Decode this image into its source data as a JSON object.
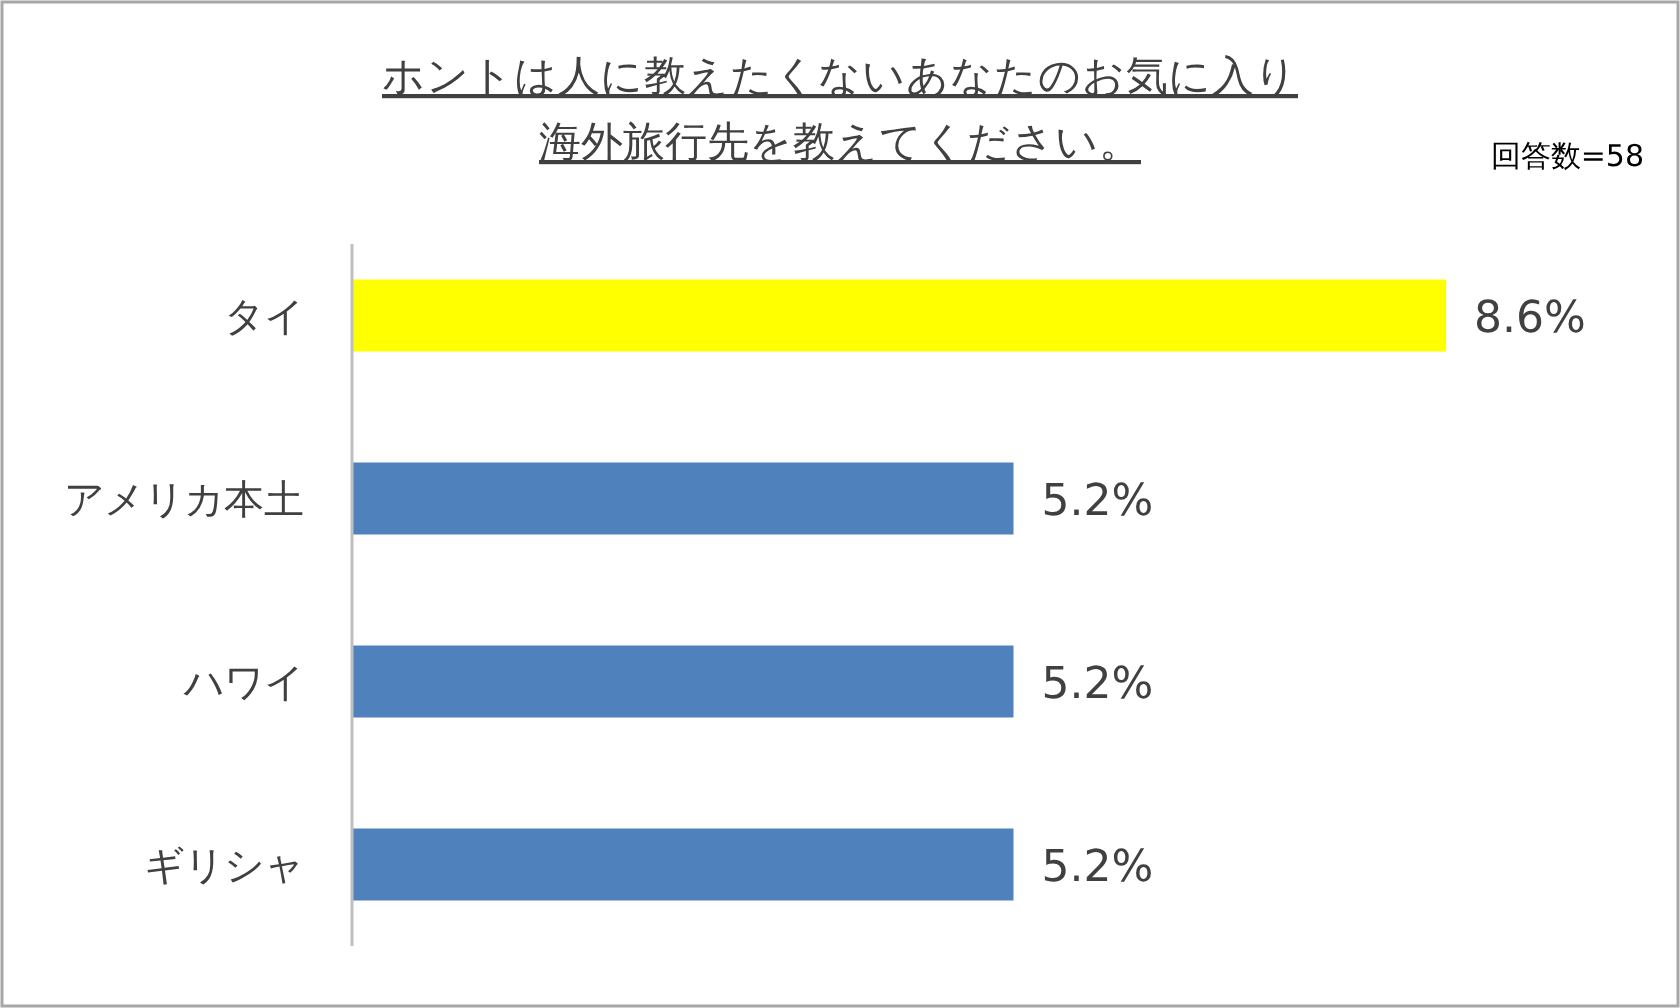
{
  "chart_data": {
    "type": "bar",
    "orientation": "horizontal",
    "title": "ホントは人に教えたくないあなたのお気に入り",
    "subtitle": "海外旅行先を教えてください。",
    "annotations": [
      "回答数=58"
    ],
    "categories": [
      "タイ",
      "アメリカ本土",
      "ハワイ",
      "ギリシャ"
    ],
    "values": [
      8.6,
      5.2,
      5.2,
      5.2
    ],
    "colors": [
      "#ffff00",
      "#4f81bd",
      "#4f81bd",
      "#4f81bd"
    ],
    "value_labels": [
      "8.6%",
      "5.2%",
      "5.2%",
      "5.2%"
    ]
  }
}
